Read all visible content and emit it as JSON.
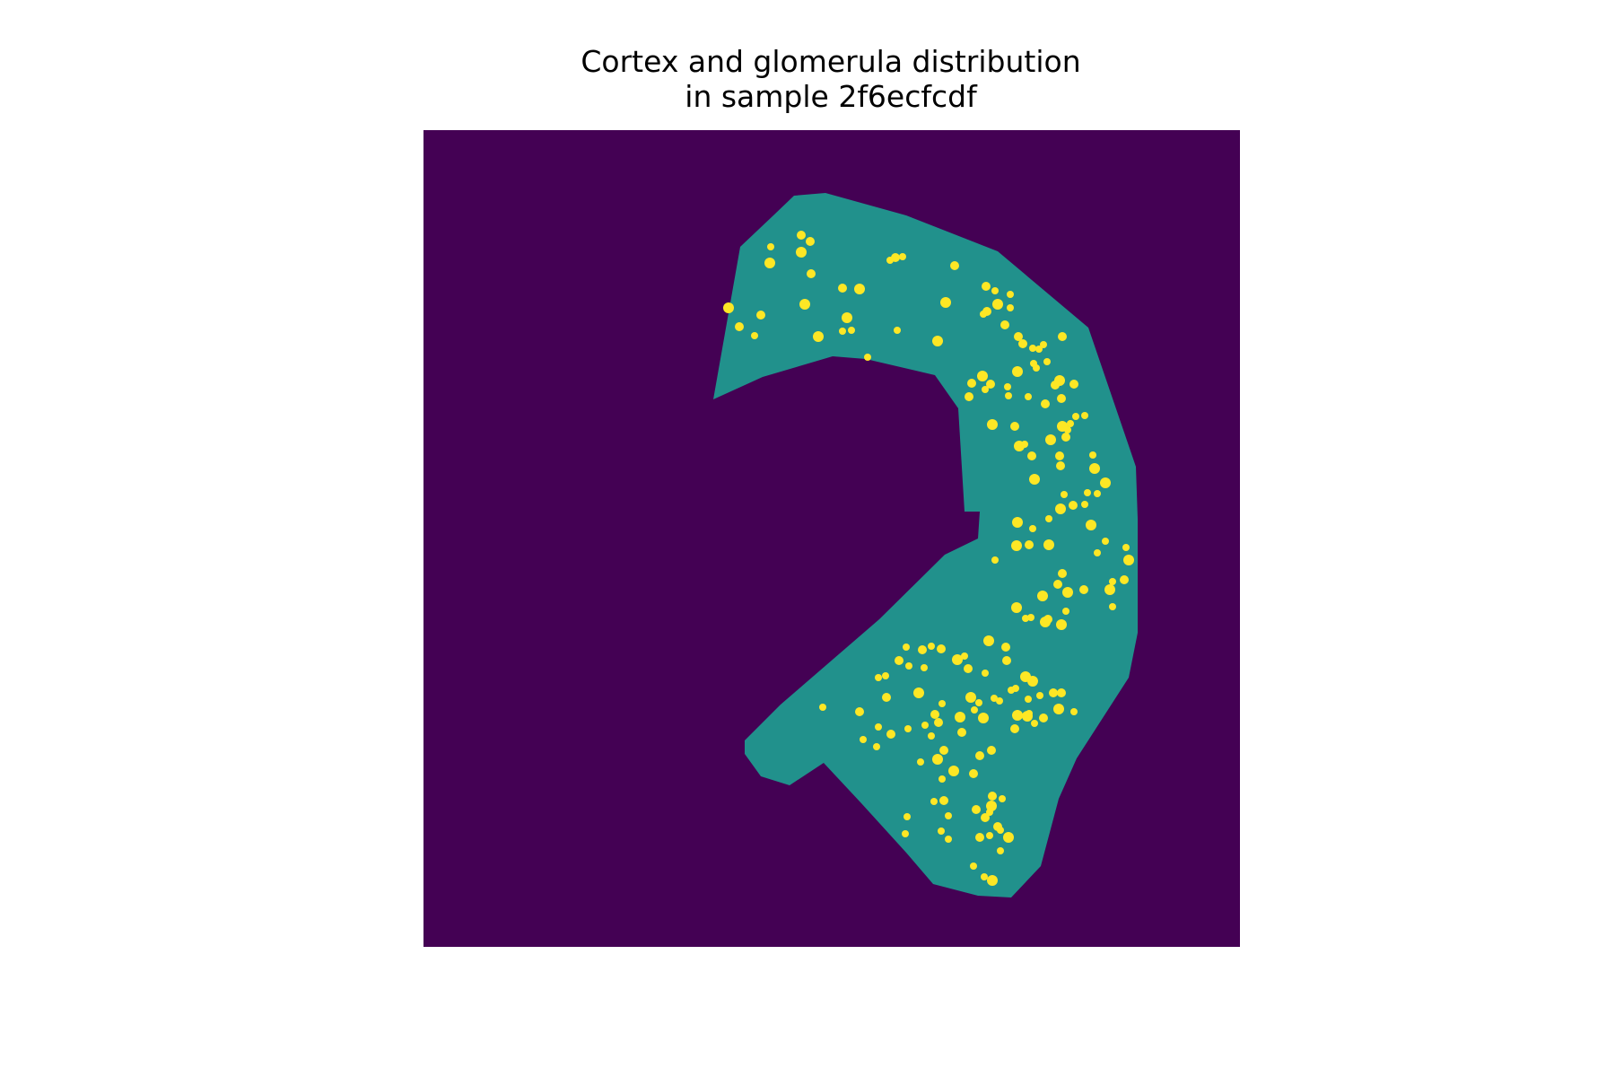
{
  "title": [
    "Cortex and glomerula distribution",
    "in sample 2f6ecfcdf"
  ],
  "chart_data": {
    "type": "heatmap",
    "title": "Cortex and glomerula distribution\nin sample 2f6ecfcdf",
    "axes": "off",
    "grid": false,
    "colormap": "viridis",
    "classes": [
      {
        "value": 0,
        "color": "#440154"
      },
      {
        "value": 1,
        "color": "#21918c"
      },
      {
        "value": 2,
        "color": "#fde725"
      }
    ]
  }
}
